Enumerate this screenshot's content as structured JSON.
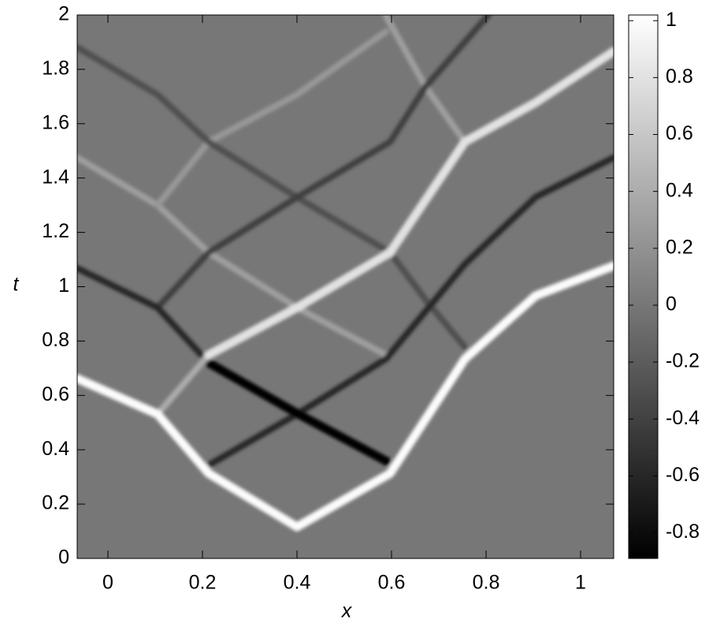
{
  "chart_data": {
    "type": "heatmap",
    "xlabel": "x",
    "ylabel": "t",
    "xlim": [
      -0.065,
      1.07
    ],
    "ylim": [
      0,
      2
    ],
    "xticks": [
      0,
      0.2,
      0.4,
      0.6,
      0.8,
      1
    ],
    "yticks": [
      0,
      0.2,
      0.4,
      0.6,
      0.8,
      1,
      1.2,
      1.4,
      1.6,
      1.8,
      2
    ],
    "background_value": 0,
    "colorbar": {
      "clim": [
        -0.89,
        1.02
      ],
      "ticks": [
        1,
        0.8,
        0.6,
        0.4,
        0.2,
        0,
        -0.2,
        -0.4,
        -0.6,
        -0.8
      ]
    },
    "rays": [
      {
        "level": 0.3,
        "x": [
          -0.065,
          0.105,
          0.213,
          0.4,
          0.588
        ],
        "y": [
          1.475,
          1.3,
          1.126,
          0.923,
          0.749
        ]
      },
      {
        "level": 0.25,
        "x": [
          0.105,
          0.213,
          0.4,
          0.588
        ],
        "y": [
          1.3,
          1.533,
          1.707,
          1.939
        ]
      },
      {
        "level": 0.3,
        "x": [
          0.588,
          0.672,
          0.755
        ],
        "y": [
          1.997,
          1.736,
          1.533
        ]
      },
      {
        "level": -0.3,
        "x": [
          -0.065,
          0.105,
          0.213,
          0.4,
          0.597,
          0.672,
          0.755
        ],
        "y": [
          1.881,
          1.707,
          1.533,
          1.329,
          1.126,
          0.952,
          0.778
        ]
      },
      {
        "level": -0.4,
        "x": [
          0.105,
          0.213,
          0.4,
          0.597,
          0.672,
          0.805
        ],
        "y": [
          0.923,
          1.126,
          1.329,
          1.533,
          1.736,
          2
        ]
      },
      {
        "level": -0.6,
        "x": [
          -0.065,
          0.105,
          0.213
        ],
        "y": [
          1.068,
          0.923,
          0.72
        ]
      },
      {
        "level": -0.6,
        "x": [
          0.213,
          0.4,
          0.588,
          0.755,
          0.905,
          1.07
        ],
        "y": [
          0.343,
          0.531,
          0.734,
          1.083,
          1.33,
          1.475
        ]
      },
      {
        "level": -0.85,
        "x": [
          0.213,
          0.4,
          0.59
        ],
        "y": [
          0.72,
          0.534,
          0.357
        ]
      },
      {
        "level": 0.4,
        "x": [
          0.105,
          0.213
        ],
        "y": [
          0.531,
          0.749
        ]
      },
      {
        "level": 0.8,
        "x": [
          0.213,
          0.4,
          0.597,
          0.755,
          0.905,
          1.07
        ],
        "y": [
          0.749,
          0.923,
          1.126,
          1.533,
          1.678,
          1.866
        ]
      },
      {
        "level": 1,
        "x": [
          -0.065,
          0.105,
          0.213,
          0.4,
          0.597,
          0.755,
          0.905,
          1.07
        ],
        "y": [
          0.662,
          0.531,
          0.313,
          0.116,
          0.313,
          0.734,
          0.967,
          1.077
        ]
      }
    ]
  }
}
